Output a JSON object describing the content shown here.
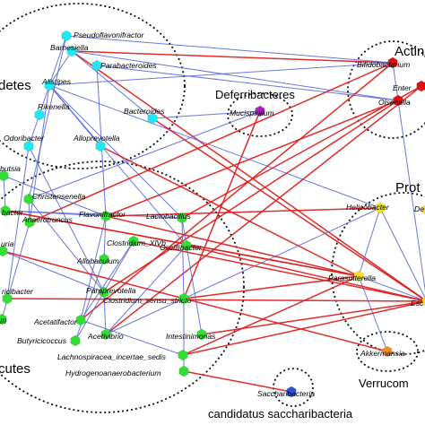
{
  "groups": [
    {
      "id": "bacteroidetes",
      "label": "detes",
      "size": 15
    },
    {
      "id": "deferribacteres",
      "label": "Deferribacteres",
      "size": 13
    },
    {
      "id": "actinobacteria",
      "label": "Actin",
      "size": 15
    },
    {
      "id": "proteobacteria",
      "label": "Prot",
      "size": 15
    },
    {
      "id": "firmicutes",
      "label": "cutes",
      "size": 15
    },
    {
      "id": "verrucomicrobia",
      "label": "Verrucom",
      "size": 13
    },
    {
      "id": "saccharibacteria",
      "label": "candidatus saccharibacteria",
      "size": 13
    }
  ],
  "colors": {
    "bacteroidetes": "#1fe6f0",
    "firmicutes": "#33dd33",
    "deferribacteres": "#b020c0",
    "actinobacteria": "#e01010",
    "proteobacteria": "#f0e020",
    "verrucomicrobia": "#f09020",
    "saccharibacteria": "#3050e0",
    "positive_edge": "#e02020",
    "negative_edge": "#5060d8"
  },
  "nodes": [
    {
      "id": "pseudoflavonifractor",
      "label": "Pseudoflavonifractor",
      "group": "bacteroidetes"
    },
    {
      "id": "barnesiella",
      "label": "Barnesiella",
      "group": "bacteroidetes"
    },
    {
      "id": "parabacteroides",
      "label": "Parabacteroides",
      "group": "bacteroidetes"
    },
    {
      "id": "alistipes",
      "label": "Alistipes",
      "group": "bacteroidetes"
    },
    {
      "id": "rikenella",
      "label": "Rikenella",
      "group": "bacteroidetes"
    },
    {
      "id": "bacteroides",
      "label": "Bacteroides",
      "group": "bacteroidetes"
    },
    {
      "id": "odoribacter",
      "label": "Odoribacter",
      "group": "bacteroidetes"
    },
    {
      "id": "alloprevotella",
      "label": "Alloprevotella",
      "group": "bacteroidetes"
    },
    {
      "id": "mucispirillum",
      "label": "Mucispirillum",
      "group": "deferribacteres"
    },
    {
      "id": "bifidobacterium",
      "label": "Bifidobacterium",
      "group": "actinobacteria"
    },
    {
      "id": "enterorhabdus",
      "label": "Enter",
      "group": "actinobacteria"
    },
    {
      "id": "olsenella",
      "label": "Olsenella",
      "group": "actinobacteria"
    },
    {
      "id": "helicobacter",
      "label": "Helicobacter",
      "group": "proteobacteria"
    },
    {
      "id": "desulfovibrio",
      "label": "De",
      "group": "proteobacteria"
    },
    {
      "id": "parasutterella",
      "label": "Parasutterella",
      "group": "proteobacteria"
    },
    {
      "id": "escherichia",
      "label": "Esc",
      "group": "proteobacteria"
    },
    {
      "id": "akkermansia",
      "label": "Akkermansia",
      "group": "verrucomicrobia"
    },
    {
      "id": "saccharibacteria",
      "label": "Saccharibacteria",
      "group": "saccharibacteria"
    },
    {
      "id": "blautia",
      "label": "butsia",
      "group": "firmicutes"
    },
    {
      "id": "christensenella",
      "label": "Christensenella",
      "group": "firmicutes"
    },
    {
      "id": "romboutsia",
      "label": "bacter",
      "group": "firmicutes"
    },
    {
      "id": "anaerotruncus",
      "label": "Anaerotruncus",
      "group": "firmicutes"
    },
    {
      "id": "flavonifractor",
      "label": "Flavonifractor",
      "group": "firmicutes"
    },
    {
      "id": "lactobacillus",
      "label": "Lactobacillus",
      "group": "firmicutes"
    },
    {
      "id": "turicibacter",
      "label": "uria",
      "group": "firmicutes"
    },
    {
      "id": "clostridium_xivb",
      "label": "Clostridium_XlVb",
      "group": "firmicutes"
    },
    {
      "id": "oscillibacter",
      "label": "Oscillibacter",
      "group": "firmicutes"
    },
    {
      "id": "allobaculum",
      "label": "Allobaculum",
      "group": "firmicutes"
    },
    {
      "id": "ruminococcus",
      "label": "ricibacter",
      "group": "firmicutes"
    },
    {
      "id": "paraprevotella",
      "label": "Paraprevotella",
      "group": "firmicutes"
    },
    {
      "id": "clostridium_ss",
      "label": "Clostridium_sensu_stricto",
      "group": "firmicutes"
    },
    {
      "id": "clostridium_iii",
      "label": "III",
      "group": "firmicutes"
    },
    {
      "id": "acetatifactor",
      "label": "Acetatifactor",
      "group": "firmicutes"
    },
    {
      "id": "butyricicoccus",
      "label": "Butyricicoccus",
      "group": "firmicutes"
    },
    {
      "id": "acetivibrio",
      "label": "Acetivibrio",
      "group": "firmicutes"
    },
    {
      "id": "intestinimonas",
      "label": "Intestinimonas",
      "group": "firmicutes"
    },
    {
      "id": "lachnospiracea",
      "label": "Lachnospiracea_incertae_sedis",
      "group": "firmicutes"
    },
    {
      "id": "hydrogenoanaerobacterium",
      "label": "Hydrogenoanaerobacterium",
      "group": "firmicutes"
    }
  ],
  "edges": [
    {
      "source": "barnesiella",
      "target": "bifidobacterium",
      "sign": "positive"
    },
    {
      "source": "barnesiella",
      "target": "escherichia",
      "sign": "positive"
    },
    {
      "source": "barnesiella",
      "target": "olsenella",
      "sign": "negative"
    },
    {
      "source": "barnesiella",
      "target": "bacteroides",
      "sign": "negative"
    },
    {
      "source": "barnesiella",
      "target": "alistipes",
      "sign": "negative"
    },
    {
      "source": "pseudoflavonifractor",
      "target": "bifidobacterium",
      "sign": "negative"
    },
    {
      "source": "pseudoflavonifractor",
      "target": "alistipes",
      "sign": "negative"
    },
    {
      "source": "pseudoflavonifractor",
      "target": "christensenella",
      "sign": "negative"
    },
    {
      "source": "alistipes",
      "target": "bifidobacterium",
      "sign": "negative"
    },
    {
      "source": "alistipes",
      "target": "lactobacillus",
      "sign": "negative"
    },
    {
      "source": "alistipes",
      "target": "alloprevotella",
      "sign": "negative"
    },
    {
      "source": "alistipes",
      "target": "oscillibacter",
      "sign": "negative"
    },
    {
      "source": "alistipes",
      "target": "helicobacter",
      "sign": "negative"
    },
    {
      "source": "alistipes",
      "target": "anaerotruncus",
      "sign": "negative"
    },
    {
      "source": "rikenella",
      "target": "odoribacter",
      "sign": "negative"
    },
    {
      "source": "rikenella",
      "target": "alistipes",
      "sign": "negative"
    },
    {
      "source": "parabacteroides",
      "target": "olsenella",
      "sign": "negative"
    },
    {
      "source": "parabacteroides",
      "target": "flavonifractor",
      "sign": "negative"
    },
    {
      "source": "bacteroides",
      "target": "mucispirillum",
      "sign": "negative"
    },
    {
      "source": "bacteroides",
      "target": "escherichia",
      "sign": "positive"
    },
    {
      "source": "odoribacter",
      "target": "paraprevotella",
      "sign": "negative"
    },
    {
      "source": "odoribacter",
      "target": "ruminococcus",
      "sign": "negative"
    },
    {
      "source": "alloprevotella",
      "target": "parasutterella",
      "sign": "positive"
    },
    {
      "source": "mucispirillum",
      "target": "christensenella",
      "sign": "negative"
    },
    {
      "source": "mucispirillum",
      "target": "clostridium_ss",
      "sign": "positive"
    },
    {
      "source": "bifidobacterium",
      "target": "anaerotruncus",
      "sign": "positive"
    },
    {
      "source": "bifidobacterium",
      "target": "acetatifactor",
      "sign": "positive"
    },
    {
      "source": "bifidobacterium",
      "target": "olsenella",
      "sign": "negative"
    },
    {
      "source": "olsenella",
      "target": "flavonifractor",
      "sign": "positive"
    },
    {
      "source": "olsenella",
      "target": "paraprevotella",
      "sign": "positive"
    },
    {
      "source": "olsenella",
      "target": "escherichia",
      "sign": "negative"
    },
    {
      "source": "enterorhabdus",
      "target": "acetivibrio",
      "sign": "positive"
    },
    {
      "source": "enterorhabdus",
      "target": "lactobacillus",
      "sign": "positive"
    },
    {
      "source": "helicobacter",
      "target": "clostridium_ss",
      "sign": "negative"
    },
    {
      "source": "helicobacter",
      "target": "parasutterella",
      "sign": "negative"
    },
    {
      "source": "parasutterella",
      "target": "romboutsia",
      "sign": "positive"
    },
    {
      "source": "parasutterella",
      "target": "clostridium_ss",
      "sign": "positive"
    },
    {
      "source": "parasutterella",
      "target": "flavonifractor",
      "sign": "positive"
    },
    {
      "source": "parasutterella",
      "target": "lachnospiracea",
      "sign": "positive"
    },
    {
      "source": "parasutterella",
      "target": "escherichia",
      "sign": "negative"
    },
    {
      "source": "parasutterella",
      "target": "akkermansia",
      "sign": "negative"
    },
    {
      "source": "escherichia",
      "target": "oscillibacter",
      "sign": "positive"
    },
    {
      "source": "escherichia",
      "target": "clostridium_xivb",
      "sign": "positive"
    },
    {
      "source": "escherichia",
      "target": "desulfovibrio",
      "sign": "negative"
    },
    {
      "source": "escherichia",
      "target": "helicobacter",
      "sign": "negative"
    },
    {
      "source": "akkermansia",
      "target": "clostridium_ss",
      "sign": "positive"
    },
    {
      "source": "christensenella",
      "target": "anaerotruncus",
      "sign": "negative"
    },
    {
      "source": "christensenella",
      "target": "paraprevotella",
      "sign": "negative"
    },
    {
      "source": "blautia",
      "target": "flavonifractor",
      "sign": "negative"
    },
    {
      "source": "blautia",
      "target": "romboutsia",
      "sign": "negative"
    },
    {
      "source": "romboutsia",
      "target": "flavonifractor",
      "sign": "negative"
    },
    {
      "source": "romboutsia",
      "target": "lactobacillus",
      "sign": "negative"
    },
    {
      "source": "romboutsia",
      "target": "parasutterella",
      "sign": "positive"
    },
    {
      "source": "anaerotruncus",
      "target": "clostridium_iii",
      "sign": "negative"
    },
    {
      "source": "turicibacter",
      "target": "clostridium_ss",
      "sign": "positive"
    },
    {
      "source": "turicibacter",
      "target": "paraprevotella",
      "sign": "negative"
    },
    {
      "source": "flavonifractor",
      "target": "allobaculum",
      "sign": "negative"
    },
    {
      "source": "flavonifractor",
      "target": "acetatifactor",
      "sign": "negative"
    },
    {
      "source": "flavonifractor",
      "target": "helicobacter",
      "sign": "positive"
    },
    {
      "source": "lactobacillus",
      "target": "clostridium_ss",
      "sign": "negative"
    },
    {
      "source": "lactobacillus",
      "target": "oscillibacter",
      "sign": "negative"
    },
    {
      "source": "clostridium_xivb",
      "target": "acetatifactor",
      "sign": "negative"
    },
    {
      "source": "clostridium_xivb",
      "target": "butyricicoccus",
      "sign": "negative"
    },
    {
      "source": "oscillibacter",
      "target": "acetivibrio",
      "sign": "negative"
    },
    {
      "source": "oscillibacter",
      "target": "intestinimonas",
      "sign": "negative"
    },
    {
      "source": "allobaculum",
      "target": "butyricicoccus",
      "sign": "negative"
    },
    {
      "source": "clostridium_ss",
      "target": "hydrogenoanaerobacterium",
      "sign": "negative"
    },
    {
      "source": "clostridium_ss",
      "target": "acetivibrio",
      "sign": "negative"
    },
    {
      "source": "paraprevotella",
      "target": "acetivibrio",
      "sign": "negative"
    },
    {
      "source": "acetatifactor",
      "target": "lachnospiracea",
      "sign": "negative"
    },
    {
      "source": "hydrogenoanaerobacterium",
      "target": "saccharibacteria",
      "sign": "positive"
    },
    {
      "source": "lachnospiracea",
      "target": "escherichia",
      "sign": "positive"
    },
    {
      "source": "intestinimonas",
      "target": "escherichia",
      "sign": "positive"
    },
    {
      "source": "ruminococcus",
      "target": "escherichia",
      "sign": "positive"
    }
  ]
}
